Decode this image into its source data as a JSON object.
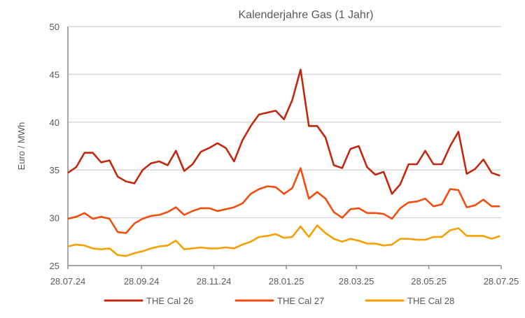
{
  "chart_data": {
    "type": "line",
    "title": "Kalenderjahre Gas (1 Jahr)",
    "xlabel": "",
    "ylabel": "Euro / MWh",
    "ylim": [
      25,
      50
    ],
    "yticks": [
      25,
      30,
      35,
      40,
      45,
      50
    ],
    "xlim_days": [
      0,
      365
    ],
    "x_unit": "days since 28.07.24",
    "x_ticks": [
      {
        "day": 0,
        "label": "28.07.24"
      },
      {
        "day": 62,
        "label": "28.09.24"
      },
      {
        "day": 123,
        "label": "28.11.24"
      },
      {
        "day": 184,
        "label": "28.01.25"
      },
      {
        "day": 243,
        "label": "28.03.25"
      },
      {
        "day": 304,
        "label": "28.05.25"
      },
      {
        "day": 365,
        "label": "28.07.25"
      }
    ],
    "x_step_days": 7,
    "grid": "horizontal",
    "legend_position": "bottom",
    "series": [
      {
        "name": "THE Cal 26",
        "color": "#C0280F",
        "values": [
          34.7,
          35.3,
          36.8,
          36.8,
          35.8,
          36.0,
          34.3,
          33.8,
          33.6,
          35.0,
          35.7,
          35.9,
          35.5,
          37.0,
          34.9,
          35.6,
          36.9,
          37.3,
          37.8,
          37.3,
          35.9,
          38.1,
          39.6,
          40.8,
          41.0,
          41.2,
          40.3,
          42.3,
          45.5,
          39.6,
          39.6,
          38.4,
          35.5,
          35.2,
          37.2,
          37.5,
          35.3,
          34.5,
          34.8,
          32.5,
          33.5,
          35.6,
          35.6,
          37.0,
          35.6,
          35.6,
          37.5,
          39.0,
          34.6,
          35.1,
          36.1,
          34.7,
          34.4
        ]
      },
      {
        "name": "THE Cal 27",
        "color": "#F04E0E",
        "values": [
          29.9,
          30.1,
          30.5,
          29.9,
          30.1,
          29.9,
          28.5,
          28.4,
          29.4,
          29.9,
          30.2,
          30.3,
          30.6,
          31.1,
          30.3,
          30.7,
          31.0,
          31.0,
          30.7,
          30.9,
          31.1,
          31.5,
          32.5,
          33.0,
          33.3,
          33.2,
          32.5,
          33.1,
          35.2,
          32.0,
          32.7,
          32.0,
          30.6,
          30.0,
          30.9,
          31.0,
          30.5,
          30.5,
          30.4,
          29.9,
          31.0,
          31.6,
          31.7,
          32.0,
          31.2,
          31.4,
          33.0,
          32.9,
          31.1,
          31.3,
          31.9,
          31.2,
          31.2
        ]
      },
      {
        "name": "THE Cal 28",
        "color": "#F5A000",
        "values": [
          27.0,
          27.2,
          27.1,
          26.8,
          26.7,
          26.8,
          26.1,
          26.0,
          26.3,
          26.5,
          26.8,
          27.0,
          27.1,
          27.6,
          26.7,
          26.8,
          26.9,
          26.8,
          26.8,
          26.9,
          26.8,
          27.2,
          27.5,
          28.0,
          28.1,
          28.3,
          27.9,
          28.0,
          29.1,
          28.0,
          29.2,
          28.4,
          27.8,
          27.5,
          27.8,
          27.6,
          27.3,
          27.3,
          27.1,
          27.2,
          27.8,
          27.8,
          27.7,
          27.7,
          28.0,
          28.0,
          28.7,
          28.9,
          28.1,
          28.1,
          28.1,
          27.8,
          28.1
        ]
      }
    ]
  }
}
